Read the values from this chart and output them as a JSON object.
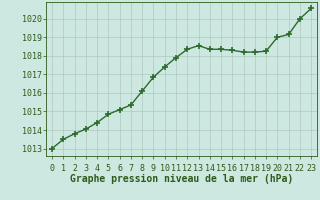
{
  "x": [
    0,
    1,
    2,
    3,
    4,
    5,
    6,
    7,
    8,
    9,
    10,
    11,
    12,
    13,
    14,
    15,
    16,
    17,
    18,
    19,
    20,
    21,
    22,
    23
  ],
  "y": [
    1013.0,
    1013.5,
    1013.8,
    1014.05,
    1014.4,
    1014.85,
    1015.1,
    1015.35,
    1016.1,
    1016.85,
    1017.4,
    1017.9,
    1018.35,
    1018.55,
    1018.35,
    1018.35,
    1018.3,
    1018.2,
    1018.2,
    1018.25,
    1019.0,
    1019.15,
    1020.0,
    1020.55
  ],
  "line_color": "#2d6a2d",
  "marker_color": "#2d6a2d",
  "bg_color": "#cce8e0",
  "grid_color": "#b0c8c0",
  "ylabel_values": [
    1013,
    1014,
    1015,
    1016,
    1017,
    1018,
    1019,
    1020
  ],
  "xlabel_label": "Graphe pression niveau de la mer (hPa)",
  "ylim": [
    1012.6,
    1020.9
  ],
  "xlim": [
    -0.5,
    23.5
  ],
  "text_color": "#2d5a1a",
  "xlabel_fontsize": 7.0,
  "tick_fontsize": 6.0,
  "marker_size": 4.0,
  "line_width": 1.0
}
